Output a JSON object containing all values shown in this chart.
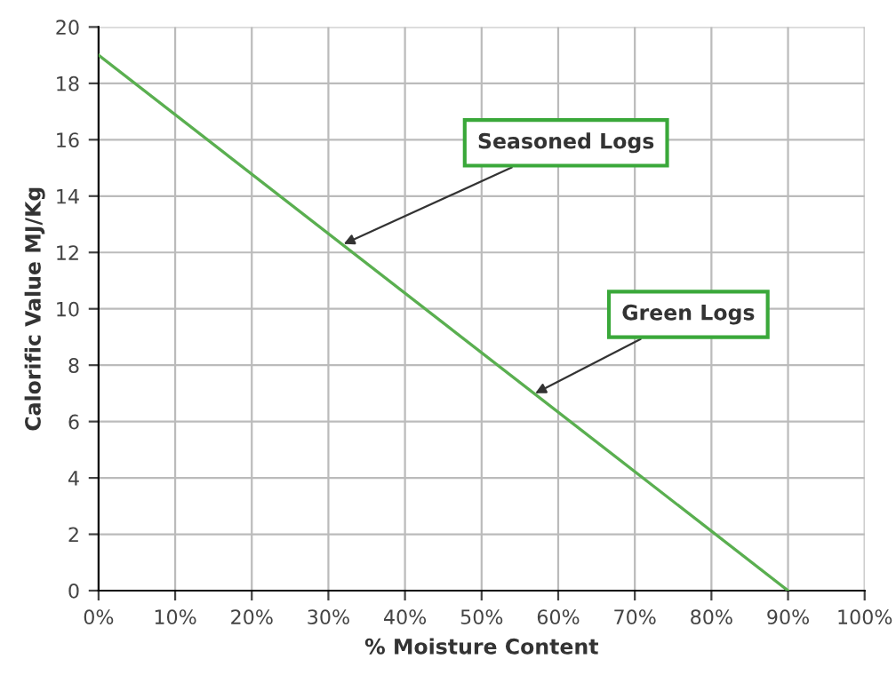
{
  "chart_data": {
    "type": "line",
    "xlabel": "% Moisture Content",
    "ylabel": "Calorific Value MJ/Kg",
    "x": [
      0,
      90
    ],
    "series": [
      {
        "color": "#5aaf50",
        "values": [
          19,
          0
        ]
      }
    ],
    "xlim": [
      0,
      100
    ],
    "ylim": [
      0,
      20
    ],
    "xticks": [
      {
        "value": 0,
        "label": "0%"
      },
      {
        "value": 10,
        "label": "10%"
      },
      {
        "value": 20,
        "label": "20%"
      },
      {
        "value": 30,
        "label": "30%"
      },
      {
        "value": 40,
        "label": "40%"
      },
      {
        "value": 50,
        "label": "50%"
      },
      {
        "value": 60,
        "label": "60%"
      },
      {
        "value": 70,
        "label": "70%"
      },
      {
        "value": 80,
        "label": "80%"
      },
      {
        "value": 90,
        "label": "90%"
      },
      {
        "value": 100,
        "label": "100%"
      }
    ],
    "yticks": [
      0,
      2,
      4,
      6,
      8,
      10,
      12,
      14,
      16,
      18,
      20
    ],
    "grid": true,
    "marker": "none",
    "line_style": "solid",
    "annotations": [
      {
        "text": "Seasoned Logs",
        "x": 32,
        "y": 12.3
      },
      {
        "text": "Green Logs",
        "x": 57,
        "y": 7.0
      }
    ]
  }
}
